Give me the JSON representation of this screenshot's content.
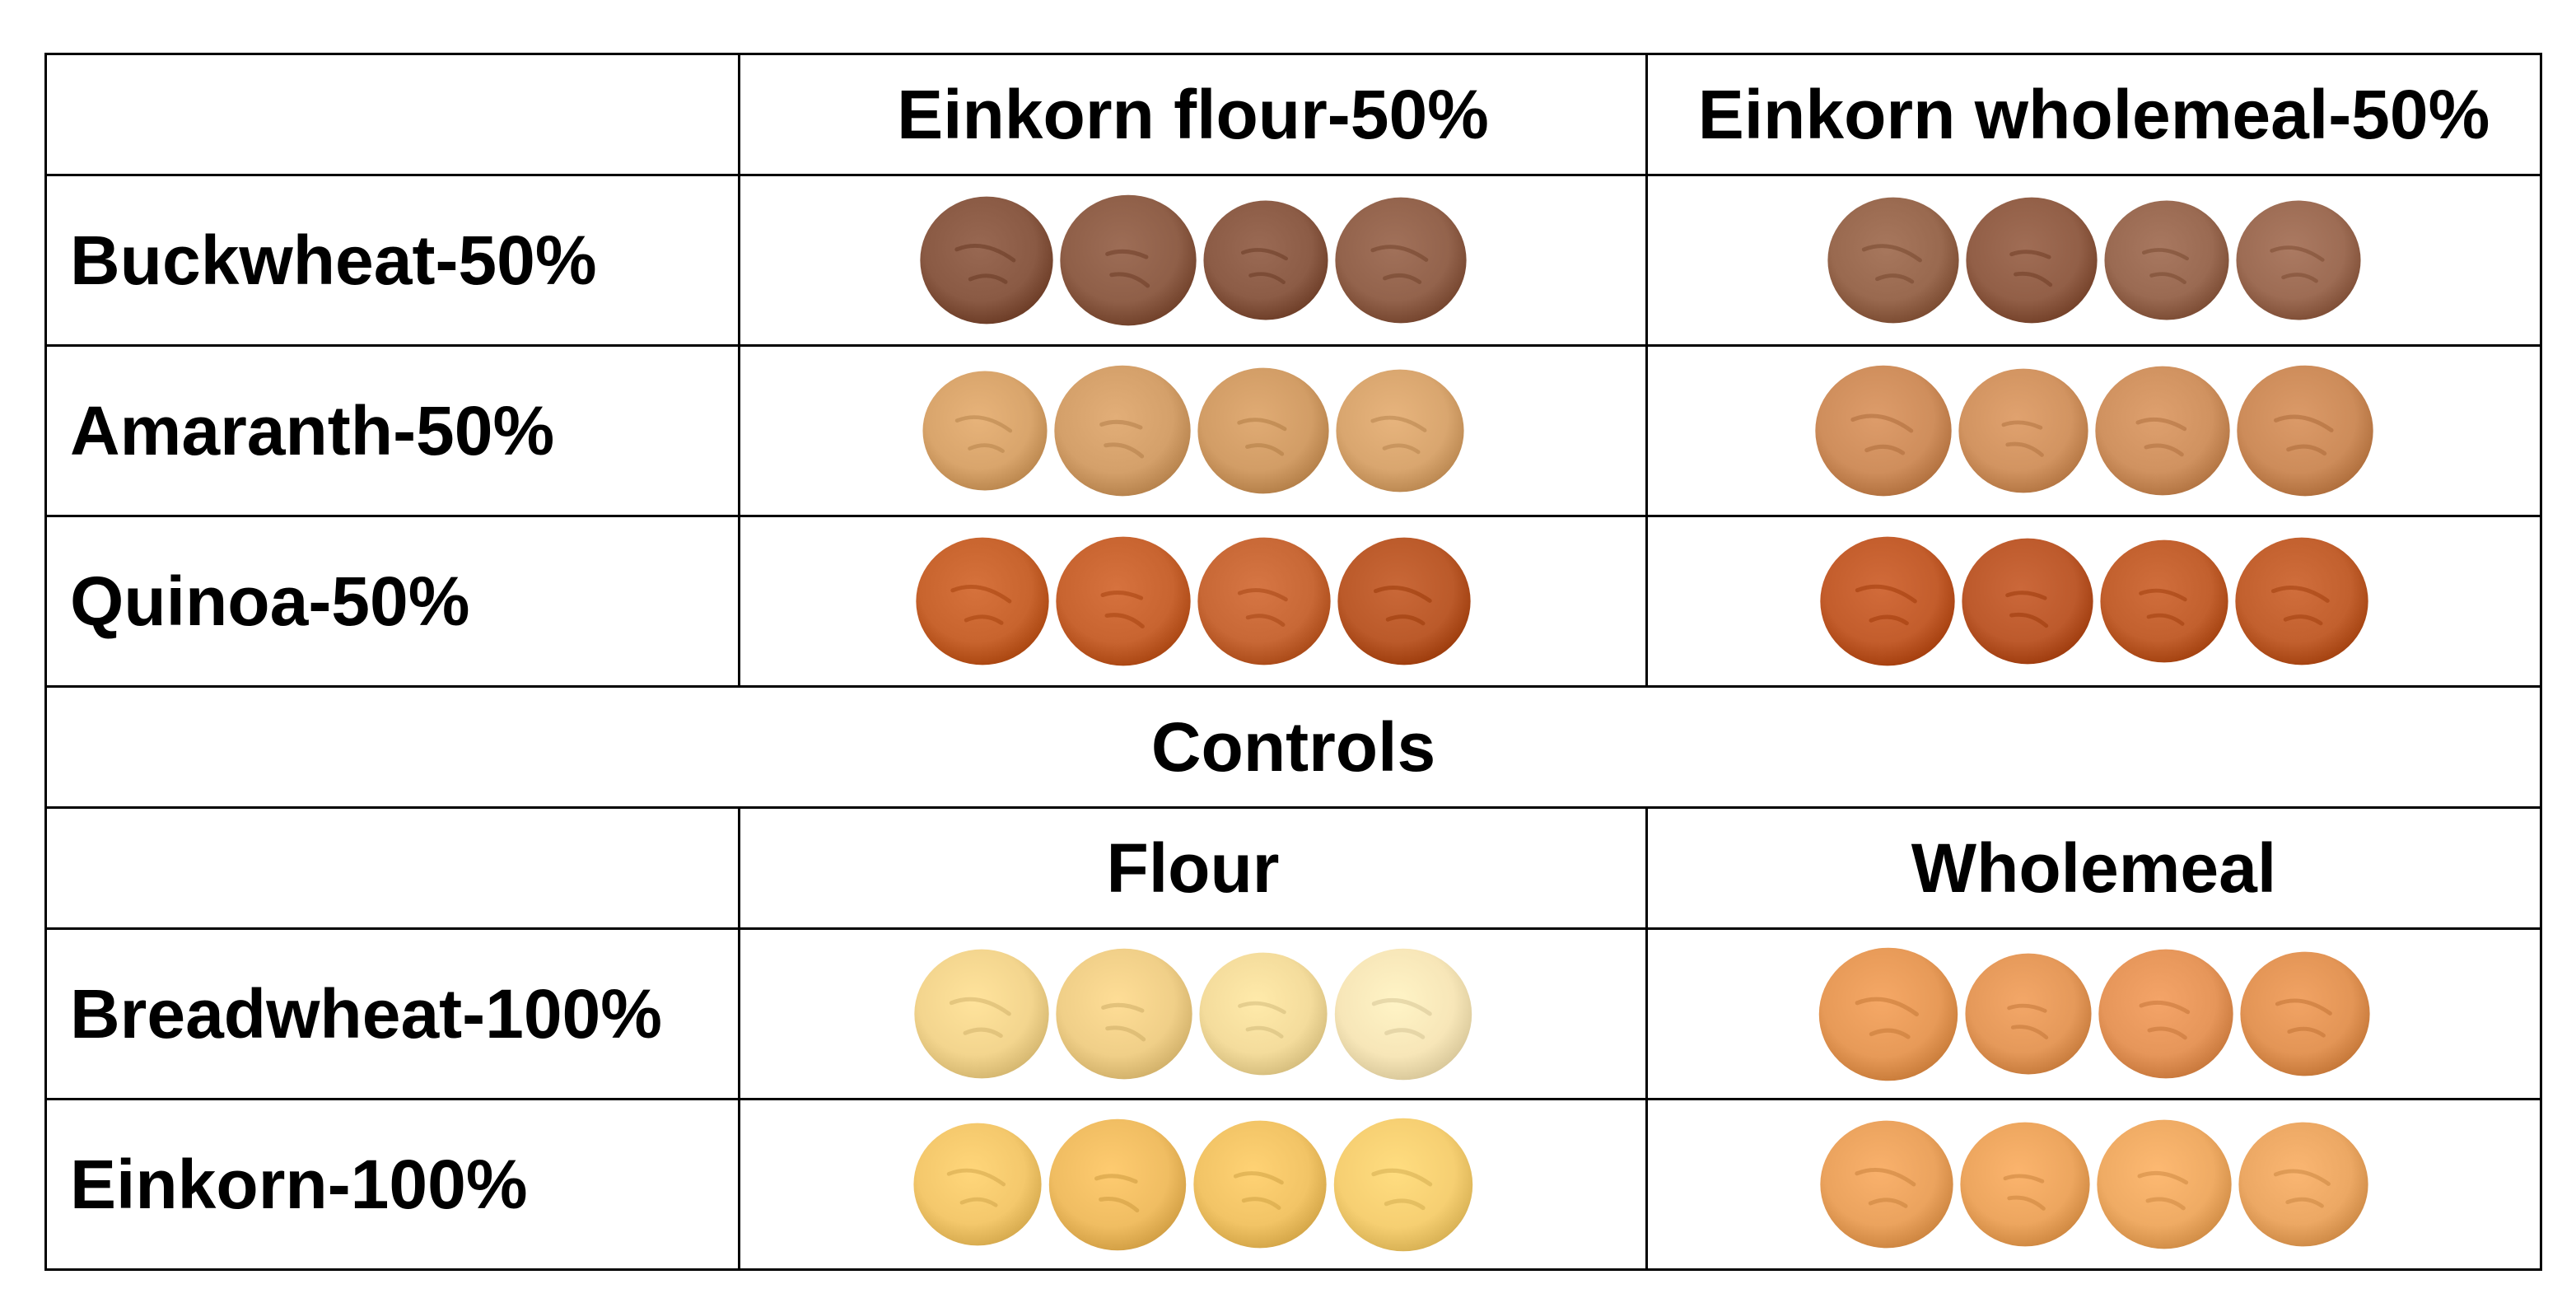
{
  "table": {
    "column_headers": [
      "",
      "Einkorn flour-50%",
      "Einkorn wholemeal-50%"
    ],
    "rows": [
      {
        "label": "Buckwheat-50%",
        "left_colors": [
          "#8a5a44",
          "#8f5f48",
          "#8c5c46",
          "#93634c"
        ],
        "right_colors": [
          "#99694f",
          "#925f47",
          "#9a6a52",
          "#9d6c54"
        ]
      },
      {
        "label": "Amaranth-50%",
        "left_colors": [
          "#d9a56c",
          "#d4a06a",
          "#d29d66",
          "#d9a66f"
        ],
        "right_colors": [
          "#cf8e5c",
          "#d29461",
          "#d09260",
          "#cd8c5a"
        ]
      },
      {
        "label": "Quinoa-50%",
        "left_colors": [
          "#c8642e",
          "#c86430",
          "#c86836",
          "#bb5a2a"
        ],
        "right_colors": [
          "#c35d2c",
          "#bd5a2c",
          "#c2602e",
          "#c2602e"
        ]
      }
    ],
    "controls_title": "Controls",
    "control_headers": [
      "",
      "Flour",
      "Wholemeal"
    ],
    "control_rows": [
      {
        "label": "Breadwheat-100%",
        "left_colors": [
          "#f3d58e",
          "#f0cf88",
          "#f4dc9c",
          "#f7e6b8"
        ],
        "right_colors": [
          "#e79a58",
          "#e5995a",
          "#e6965a",
          "#e39556"
        ]
      },
      {
        "label": "Einkorn-100%",
        "left_colors": [
          "#f4c86c",
          "#f0bd62",
          "#f2c466",
          "#f6cf72"
        ],
        "right_colors": [
          "#eba35e",
          "#eda65f",
          "#efab64",
          "#eca864"
        ]
      }
    ]
  }
}
